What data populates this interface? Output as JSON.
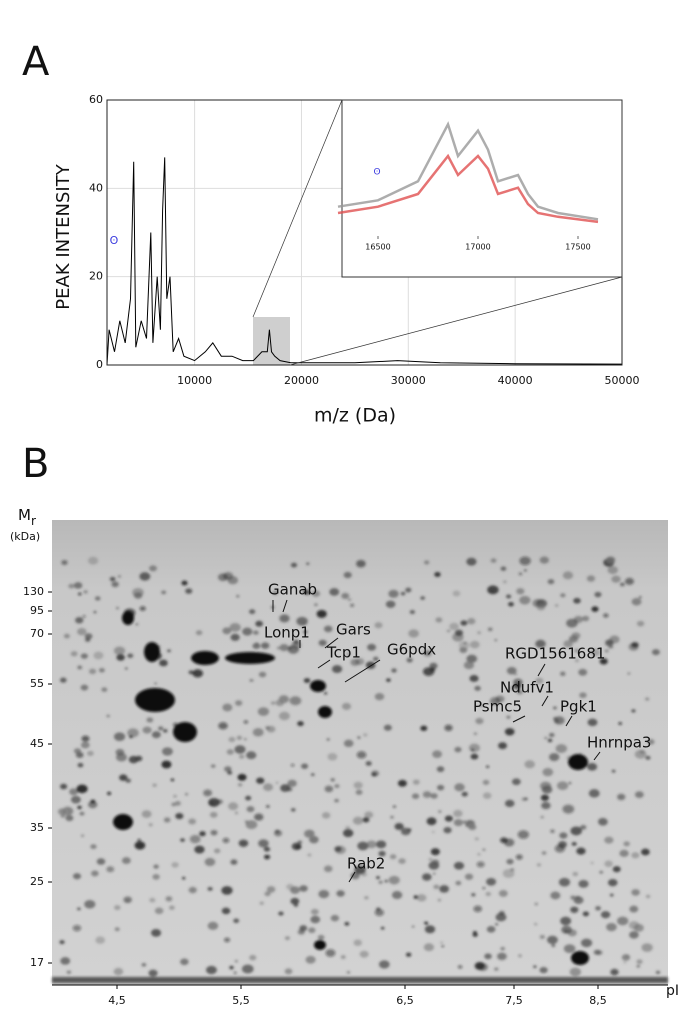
{
  "chart_data": {
    "type": "line",
    "label": "A",
    "x_label": "m/z (Da)",
    "y_label": "PEAK INTENSITY",
    "color": "#000000",
    "grid": true,
    "xlim": [
      1800,
      50000
    ],
    "ylim": [
      0,
      60
    ],
    "xticks": [
      10000,
      20000,
      30000,
      40000,
      50000
    ],
    "yticks": [
      0,
      20,
      40,
      60
    ],
    "x": [
      1800,
      2000,
      2500,
      3000,
      3500,
      4000,
      4300,
      4500,
      5000,
      5500,
      5900,
      6100,
      6500,
      6800,
      7000,
      7200,
      7400,
      7700,
      8000,
      8500,
      9000,
      10000,
      11000,
      11700,
      12500,
      13500,
      14500,
      15500,
      16300,
      16800,
      17000,
      17200,
      17500,
      18000,
      19000,
      22000,
      25000,
      29000,
      33000,
      40000,
      50000
    ],
    "values": [
      0,
      8,
      3,
      10,
      5,
      15,
      46,
      4,
      10,
      6,
      30,
      5,
      20,
      8,
      35,
      47,
      15,
      20,
      3,
      6,
      2,
      1,
      3,
      5,
      2,
      2,
      1,
      1,
      3,
      3,
      8,
      3,
      2,
      1,
      0.5,
      0.5,
      0.5,
      1,
      0.5,
      0.3,
      0.2
    ],
    "inset": {
      "type": "line",
      "xlim": [
        16320,
        17720
      ],
      "ylim": [
        0,
        9
      ],
      "xticks": [
        16500,
        17000,
        17500
      ],
      "x": [
        16300,
        16500,
        16700,
        16800,
        16850,
        16900,
        17000,
        17050,
        17100,
        17200,
        17250,
        17300,
        17400,
        17600
      ],
      "series": [
        {
          "color": "#999999",
          "values": [
            2,
            2.5,
            4,
            7,
            8.5,
            6,
            8,
            6.5,
            4,
            4.5,
            3,
            2,
            1.5,
            1
          ]
        },
        {
          "color": "#e05050",
          "values": [
            1.5,
            2,
            3,
            5,
            6,
            4.5,
            6,
            5,
            3,
            3.5,
            2.2,
            1.5,
            1.2,
            0.8
          ]
        }
      ]
    }
  },
  "gel": {
    "label": "B",
    "y_label": "M",
    "y_label_sub": "r",
    "y_unit": "(kDa)",
    "x_label": "pI",
    "mr_ticks": [
      130,
      95,
      70,
      55,
      45,
      35,
      25,
      17
    ],
    "pi_ticks": [
      {
        "value": 4.5,
        "label": "4,5"
      },
      {
        "value": 5.5,
        "label": "5,5"
      },
      {
        "value": 6.5,
        "label": "6,5"
      },
      {
        "value": 7.5,
        "label": "7,5"
      },
      {
        "value": 8.5,
        "label": "8,5"
      }
    ],
    "proteins": [
      "Ganab",
      "Lonp1",
      "Gars",
      "Tcp1",
      "G6pdx",
      "RGD1561681",
      "Ndufv1",
      "Psmc5",
      "Pgk1",
      "Hnrnpa3",
      "Rab2"
    ]
  }
}
